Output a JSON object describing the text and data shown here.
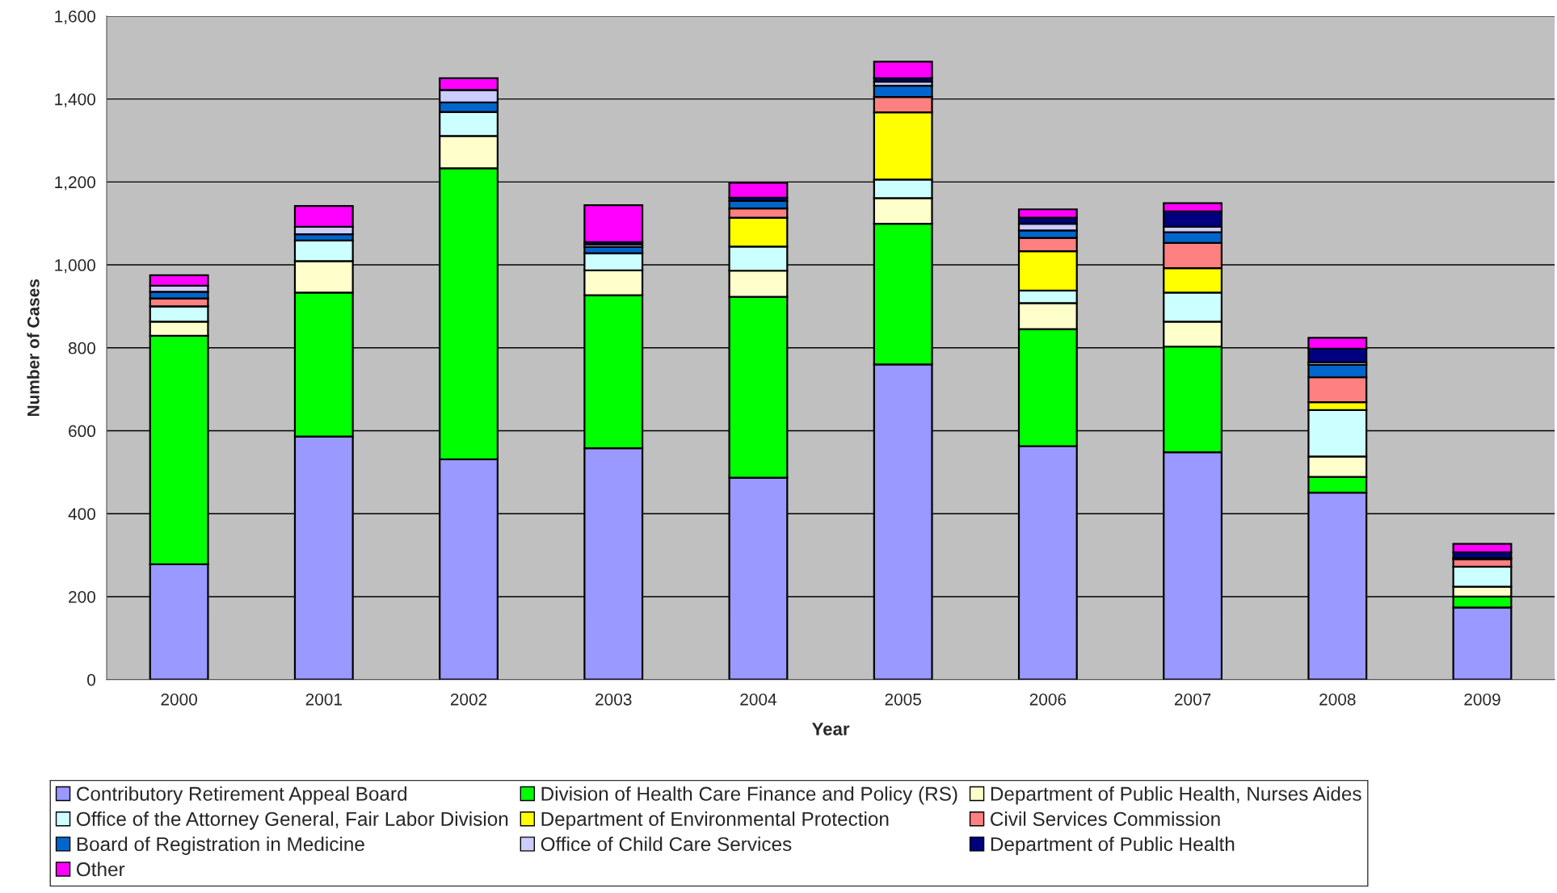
{
  "chart_data": {
    "type": "bar",
    "stacked": true,
    "xlabel": "Year",
    "ylabel": "Number of Cases",
    "categories": [
      "2000",
      "2001",
      "2002",
      "2003",
      "2004",
      "2005",
      "2006",
      "2007",
      "2008",
      "2009"
    ],
    "series": [
      {
        "name": "Contributory Retirement Appeal Board",
        "color": "#9999ff",
        "values": [
          278,
          586,
          531,
          558,
          487,
          760,
          563,
          548,
          451,
          174
        ]
      },
      {
        "name": "Division of Health Care Finance and Policy (RS)",
        "color": "#00ff00",
        "values": [
          551,
          347,
          702,
          369,
          436,
          339,
          282,
          255,
          38,
          26
        ]
      },
      {
        "name": "Department of Public Health, Nurses Aides",
        "color": "#ffffcc",
        "values": [
          34,
          76,
          78,
          60,
          63,
          62,
          63,
          60,
          49,
          24
        ]
      },
      {
        "name": "Office of the Attorney General, Fair Labor Division",
        "color": "#ccffff",
        "values": [
          37,
          50,
          58,
          41,
          58,
          45,
          30,
          70,
          112,
          48
        ]
      },
      {
        "name": "Department of Environmental Protection",
        "color": "#ffff00",
        "values": [
          0,
          0,
          0,
          0,
          70,
          162,
          95,
          59,
          19,
          0
        ]
      },
      {
        "name": "Civil Services Commission",
        "color": "#ff8080",
        "values": [
          19,
          0,
          0,
          0,
          22,
          37,
          32,
          61,
          60,
          18
        ]
      },
      {
        "name": "Board of Registration in Medicine",
        "color": "#0066cc",
        "values": [
          16,
          15,
          23,
          15,
          18,
          27,
          18,
          26,
          30,
          3
        ]
      },
      {
        "name": "Office of Child Care Services",
        "color": "#ccccff",
        "values": [
          15,
          18,
          30,
          6,
          null,
          10,
          16,
          13,
          6,
          0
        ]
      },
      {
        "name": "Department of Public Health",
        "color": "#000080",
        "values": [
          0,
          0,
          0,
          6,
          8,
          8,
          15,
          37,
          33,
          14
        ]
      },
      {
        "name": "Other",
        "color": "#ff00ff",
        "values": [
          25,
          50,
          28,
          89,
          36,
          40,
          20,
          20,
          26,
          20
        ]
      }
    ],
    "ylim": [
      0,
      1600
    ],
    "yticks": [
      0,
      {
        "value": 200,
        "label": "200"
      },
      {
        "value": 400,
        "label": "400"
      },
      {
        "value": 600,
        "label": "600"
      },
      {
        "value": 800,
        "label": "800"
      },
      {
        "value": 1000,
        "label": "1,000"
      },
      {
        "value": 1200,
        "label": "1,200"
      },
      {
        "value": 1400,
        "label": "1,400"
      },
      {
        "value": 1600,
        "label": "1,600"
      }
    ],
    "grid": "y",
    "legend": "bottom"
  }
}
